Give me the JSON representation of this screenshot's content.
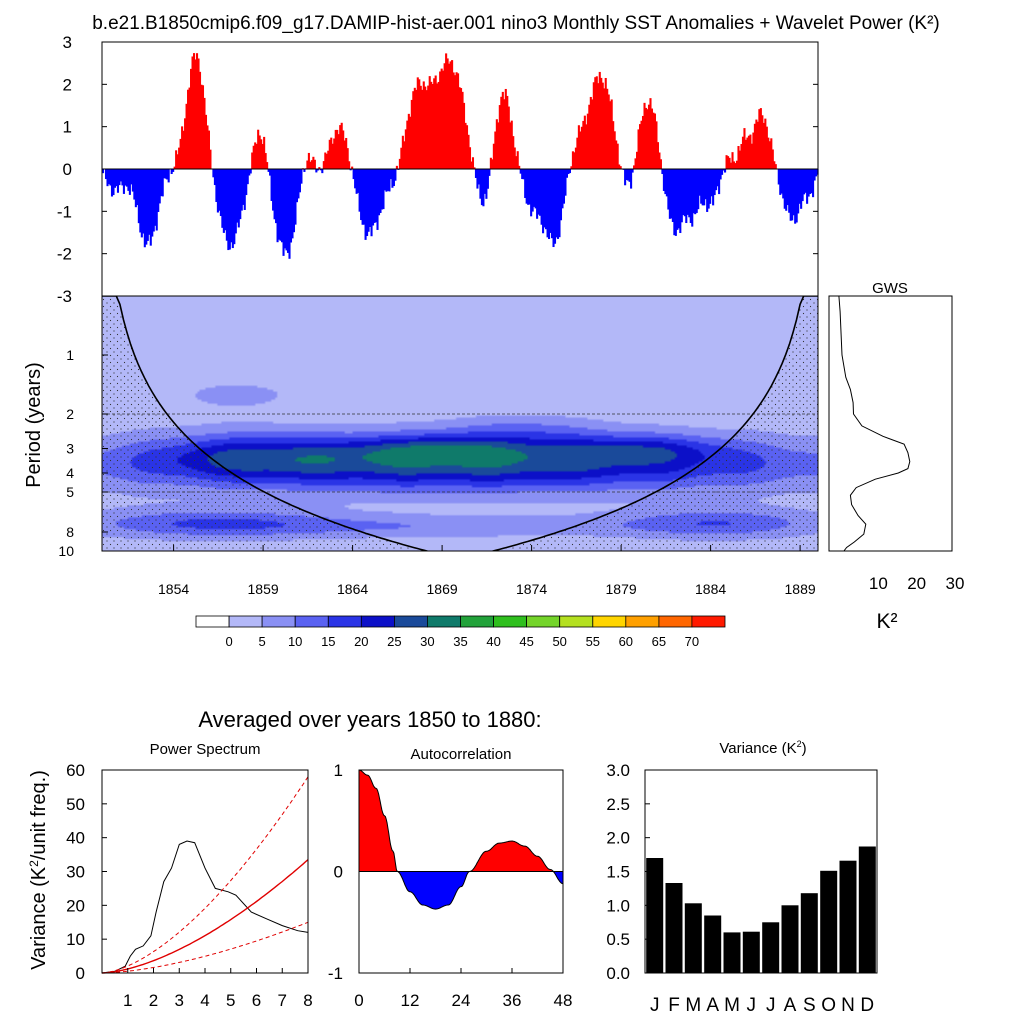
{
  "title": "b.e21.B1850cmip6.f09_g17.DAMIP-hist-aer.001 nino3 Monthly SST Anomalies + Wavelet Power (K²)",
  "avg_title": "Averaged over years 1850 to 1880:",
  "colors": {
    "positive": "#ff0000",
    "negative": "#0000ff",
    "line": "#000000"
  },
  "chart_data": [
    {
      "id": "timeseries",
      "type": "area",
      "ylim": [
        -3,
        3
      ],
      "y_ticks": [
        "3",
        "2",
        "1",
        "0",
        "-1",
        "-2",
        "-3"
      ],
      "x_start": 1850.0,
      "x_end": 1890.0,
      "baseline": 0,
      "events": [
        [
          1850.7,
          -0.5,
          1.5
        ],
        [
          1852.5,
          -1.8,
          1.7
        ],
        [
          1855.2,
          2.7,
          1.6
        ],
        [
          1857.1,
          -1.8,
          2.0
        ],
        [
          1858.8,
          1.1,
          1.2
        ],
        [
          1860.2,
          -2.0,
          2.0
        ],
        [
          1861.3,
          0.6,
          1.0
        ],
        [
          1862.3,
          -0.2,
          1.0
        ],
        [
          1863.3,
          1.1,
          2.0
        ],
        [
          1864.8,
          -1.6,
          2.2
        ],
        [
          1866.5,
          -0.5,
          1.5
        ],
        [
          1867.5,
          1.8,
          2.2
        ],
        [
          1869.4,
          2.5,
          2.6
        ],
        [
          1871.3,
          -1.2,
          1.8
        ],
        [
          1872.3,
          2.0,
          1.6
        ],
        [
          1874.0,
          -0.9,
          1.6
        ],
        [
          1875.2,
          -1.7,
          1.6
        ],
        [
          1876.4,
          0.4,
          1.2
        ],
        [
          1877.8,
          2.2,
          2.2
        ],
        [
          1879.3,
          -0.8,
          1.4
        ],
        [
          1880.5,
          1.7,
          1.8
        ],
        [
          1881.9,
          -1.5,
          1.8
        ],
        [
          1883.0,
          -0.8,
          1.2
        ],
        [
          1884.0,
          -0.8,
          1.4
        ],
        [
          1884.8,
          0.3,
          1.0
        ],
        [
          1885.8,
          0.6,
          1.0
        ],
        [
          1886.8,
          1.3,
          1.4
        ],
        [
          1888.5,
          -1.2,
          1.6
        ],
        [
          1889.5,
          -0.4,
          1.0
        ]
      ]
    },
    {
      "id": "wavelet",
      "type": "heatmap",
      "ylabel": "Period (years)",
      "x_ticks": [
        "1854",
        "1859",
        "1864",
        "1869",
        "1874",
        "1879",
        "1884",
        "1889"
      ],
      "x_tick_values": [
        1854,
        1859,
        1864,
        1869,
        1874,
        1879,
        1884,
        1889
      ],
      "y_ticks": [
        "1",
        "2",
        "3",
        "4",
        "5",
        "8",
        "10"
      ],
      "y_tick_values": [
        1,
        2,
        3,
        4,
        5,
        8,
        10
      ],
      "y_range": [
        0.5,
        10
      ],
      "x_range": [
        1850.0,
        1890.0
      ],
      "levels": [
        0,
        5,
        10,
        15,
        20,
        25,
        30,
        35,
        40,
        45,
        50,
        55,
        60,
        65,
        70
      ],
      "level_colors": [
        "#ffffff",
        "#b3b8f8",
        "#8a90f4",
        "#5a62f2",
        "#2a34e6",
        "#0c10c8",
        "#1a4a9a",
        "#0f7a6a",
        "#22a23a",
        "#2fbf1e",
        "#74d42a",
        "#b4e020",
        "#ffd500",
        "#ffa000",
        "#ff6600",
        "#ff1a00"
      ],
      "blobs": [
        [
          1870.0,
          3.6,
          14.0,
          0.22,
          26
        ],
        [
          1869.0,
          3.0,
          4.0,
          0.12,
          12
        ],
        [
          1880.0,
          3.0,
          3.2,
          0.12,
          10
        ],
        [
          1858.0,
          3.2,
          3.5,
          0.18,
          10
        ],
        [
          1873.5,
          2.4,
          3.0,
          0.12,
          6
        ],
        [
          1857.5,
          1.6,
          3.0,
          0.15,
          4
        ],
        [
          1856.0,
          7.2,
          5.0,
          0.12,
          12
        ],
        [
          1884.5,
          7.2,
          4.0,
          0.12,
          12
        ],
        [
          1868.0,
          7.5,
          9.0,
          0.09,
          7
        ],
        [
          1877.5,
          1.3,
          1.0,
          0.06,
          3
        ]
      ],
      "coi_center": 1870.0,
      "coi_halfspan": 20.0,
      "coi_peak_period": 10.5
    },
    {
      "id": "gws",
      "type": "line",
      "title": "GWS",
      "xlabel": "K²",
      "x_ticks": [
        "10",
        "20",
        "30"
      ],
      "x_tick_values": [
        10,
        20,
        30
      ],
      "xlim": [
        0,
        30
      ],
      "points": [
        [
          0.5,
          0.3
        ],
        [
          0.8,
          0.6
        ],
        [
          1.3,
          1.0
        ],
        [
          2.3,
          1.3
        ],
        [
          3.5,
          1.5
        ],
        [
          4.2,
          1.75
        ],
        [
          4.3,
          2.0
        ],
        [
          6.5,
          2.3
        ],
        [
          12.0,
          2.6
        ],
        [
          17.5,
          2.85
        ],
        [
          18.5,
          3.15
        ],
        [
          19.0,
          3.5
        ],
        [
          18.5,
          3.8
        ],
        [
          16.0,
          4.0
        ],
        [
          10.0,
          4.3
        ],
        [
          5.0,
          4.75
        ],
        [
          3.5,
          5.2
        ],
        [
          3.8,
          5.8
        ],
        [
          5.5,
          6.6
        ],
        [
          7.5,
          7.3
        ],
        [
          7.0,
          8.2
        ],
        [
          4.5,
          9.0
        ],
        [
          2.5,
          9.6
        ],
        [
          1.8,
          10.0
        ]
      ]
    },
    {
      "id": "power_spectrum",
      "type": "line",
      "title": "Power Spectrum",
      "ylabel": "Variance (K²/unit freq.)",
      "ylim": [
        0,
        60
      ],
      "xlim": [
        0,
        8
      ],
      "x_ticks": [
        "1",
        "2",
        "3",
        "4",
        "5",
        "6",
        "7",
        "8"
      ],
      "y_ticks": [
        "0",
        "10",
        "20",
        "30",
        "40",
        "50",
        "60"
      ],
      "series": [
        {
          "style": "solid-black",
          "points": [
            [
              0,
              0
            ],
            [
              0.5,
              0.5
            ],
            [
              0.9,
              2
            ],
            [
              1.1,
              5
            ],
            [
              1.3,
              7
            ],
            [
              1.6,
              8
            ],
            [
              1.9,
              11
            ],
            [
              2.1,
              18
            ],
            [
              2.4,
              27
            ],
            [
              2.7,
              31
            ],
            [
              3.0,
              38
            ],
            [
              3.3,
              39
            ],
            [
              3.6,
              38.5
            ],
            [
              4.0,
              31
            ],
            [
              4.4,
              25
            ],
            [
              4.9,
              24
            ],
            [
              5.2,
              23
            ],
            [
              5.8,
              18
            ],
            [
              6.4,
              16
            ],
            [
              7.0,
              14
            ],
            [
              7.6,
              12.5
            ],
            [
              8.0,
              12
            ]
          ]
        },
        {
          "style": "solid-red",
          "a": 33.5
        },
        {
          "style": "dashed-red",
          "a": 58
        },
        {
          "style": "dashed-red",
          "a": 15
        }
      ]
    },
    {
      "id": "autocorrelation",
      "type": "area",
      "title": "Autocorrelation",
      "ylim": [
        -1,
        1
      ],
      "xlim": [
        0,
        48
      ],
      "x_ticks": [
        "0",
        "12",
        "24",
        "36",
        "48"
      ],
      "y_ticks": [
        "1",
        "0",
        "-1"
      ],
      "points": [
        [
          0,
          1.0
        ],
        [
          2,
          0.95
        ],
        [
          4,
          0.82
        ],
        [
          6,
          0.55
        ],
        [
          8,
          0.2
        ],
        [
          9,
          0.0
        ],
        [
          12,
          -0.2
        ],
        [
          15,
          -0.33
        ],
        [
          18,
          -0.37
        ],
        [
          21,
          -0.33
        ],
        [
          24,
          -0.15
        ],
        [
          26,
          0.0
        ],
        [
          30,
          0.2
        ],
        [
          33,
          0.28
        ],
        [
          36,
          0.3
        ],
        [
          39,
          0.25
        ],
        [
          42,
          0.15
        ],
        [
          45,
          0.02
        ],
        [
          48,
          -0.12
        ]
      ]
    },
    {
      "id": "variance",
      "type": "bar",
      "title": "Variance (K²)",
      "ylim": [
        0,
        3
      ],
      "y_ticks": [
        "3.0",
        "2.5",
        "2.0",
        "1.5",
        "1.0",
        "0.5",
        "0.0"
      ],
      "categories": [
        "J",
        "F",
        "M",
        "A",
        "M",
        "J",
        "J",
        "A",
        "S",
        "O",
        "N",
        "D"
      ],
      "values": [
        1.7,
        1.33,
        1.03,
        0.85,
        0.6,
        0.61,
        0.75,
        1.0,
        1.18,
        1.51,
        1.66,
        1.87
      ]
    }
  ]
}
